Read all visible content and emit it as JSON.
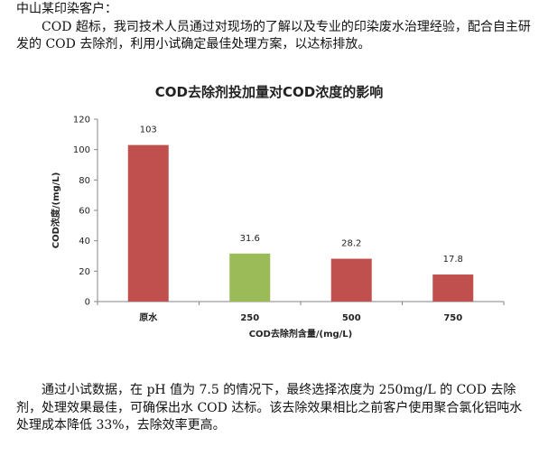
{
  "doc": {
    "intro_line1": "中山某印染客户：",
    "intro_line2": "COD 超标，我司技术人员通过对现场的了解以及专业的印染废水治理经验，配合自主研发的 COD 去除剂，利用小试确定最佳处理方案，以达标排放。",
    "conclusion": "通过小试数据，在 pH 值为 7.5 的情况下，最终选择浓度为 250mg/L 的 COD 去除剂，处理效果最佳，可确保出水 COD 达标。该去除效果相比之前客户使用聚合氯化铝吨水处理成本降低 33%，去除效率更高。"
  },
  "chart_data": {
    "type": "bar",
    "title": "COD去除剂投加量对COD浓度的影响",
    "xlabel": "COD去除剂含量/(mg/L)",
    "ylabel": "COD浓度/(mg/L)",
    "ylim": [
      0,
      120
    ],
    "yticks": [
      0,
      20,
      40,
      60,
      80,
      100,
      120
    ],
    "categories": [
      "原水",
      "250",
      "500",
      "750"
    ],
    "values": [
      103,
      31.6,
      28.2,
      17.8
    ],
    "value_labels": [
      "103",
      "31.6",
      "28.2",
      "17.8"
    ],
    "bar_colors": [
      "#c0504d",
      "#9bbb59",
      "#c0504d",
      "#c0504d"
    ],
    "grid": false,
    "legend": "none"
  }
}
